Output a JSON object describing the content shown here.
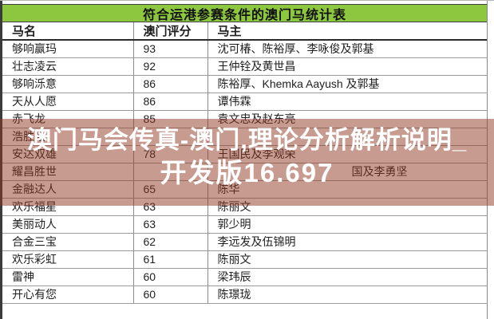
{
  "table": {
    "title": "符合运港参赛条件的澳门马统计表",
    "columns": [
      "马名",
      "澳门评分",
      "马主"
    ],
    "rows": [
      {
        "name": "够响赢玛",
        "score": "93",
        "owner": "沈可椿、陈裕厚、李咏俊及郭基"
      },
      {
        "name": "壮志凌云",
        "score": "92",
        "owner": "王仲铨及黄世昌"
      },
      {
        "name": "够响泺意",
        "score": "86",
        "owner": "陈裕厚、Khemka Aayush 及郭基"
      },
      {
        "name": "天从人愿",
        "score": "86",
        "owner": "谭伟霖"
      },
      {
        "name": "赤飞龙",
        "score": "85",
        "owner": "袁文忠及赵东亮"
      },
      {
        "name": "浩胜盈",
        "score": "",
        "owner": ""
      },
      {
        "name": "安达双雄",
        "score": "78",
        "owner": "王国民及李观荣"
      },
      {
        "name": "耀昌胜世",
        "score": "",
        "owner": "　　　　　　　　　　　　国及李勇坚"
      },
      {
        "name": "金融达人",
        "score": "65",
        "owner": "陈华"
      },
      {
        "name": "欢乐福星",
        "score": "63",
        "owner": "陈丽文"
      },
      {
        "name": "美丽动人",
        "score": "63",
        "owner": "郭少明"
      },
      {
        "name": "合金三宝",
        "score": "62",
        "owner": "李远发及伍锦明"
      },
      {
        "name": "欢乐彩虹",
        "score": "61",
        "owner": "陈丽文"
      },
      {
        "name": "雷神",
        "score": "60",
        "owner": "梁玮辰"
      },
      {
        "name": "开心有您",
        "score": "60",
        "owner": "陈璟珑"
      }
    ]
  },
  "overlay": {
    "line1": "澳门马会传真-澳门,理论分析解析说明_",
    "line2": "开发版16.697"
  },
  "colors": {
    "title_bg": "#8dc63f",
    "overlay_tint": "rgba(145,55,35,0.5)",
    "overlay_text": "#ffffff",
    "grid_line": "#9a9a9a"
  }
}
